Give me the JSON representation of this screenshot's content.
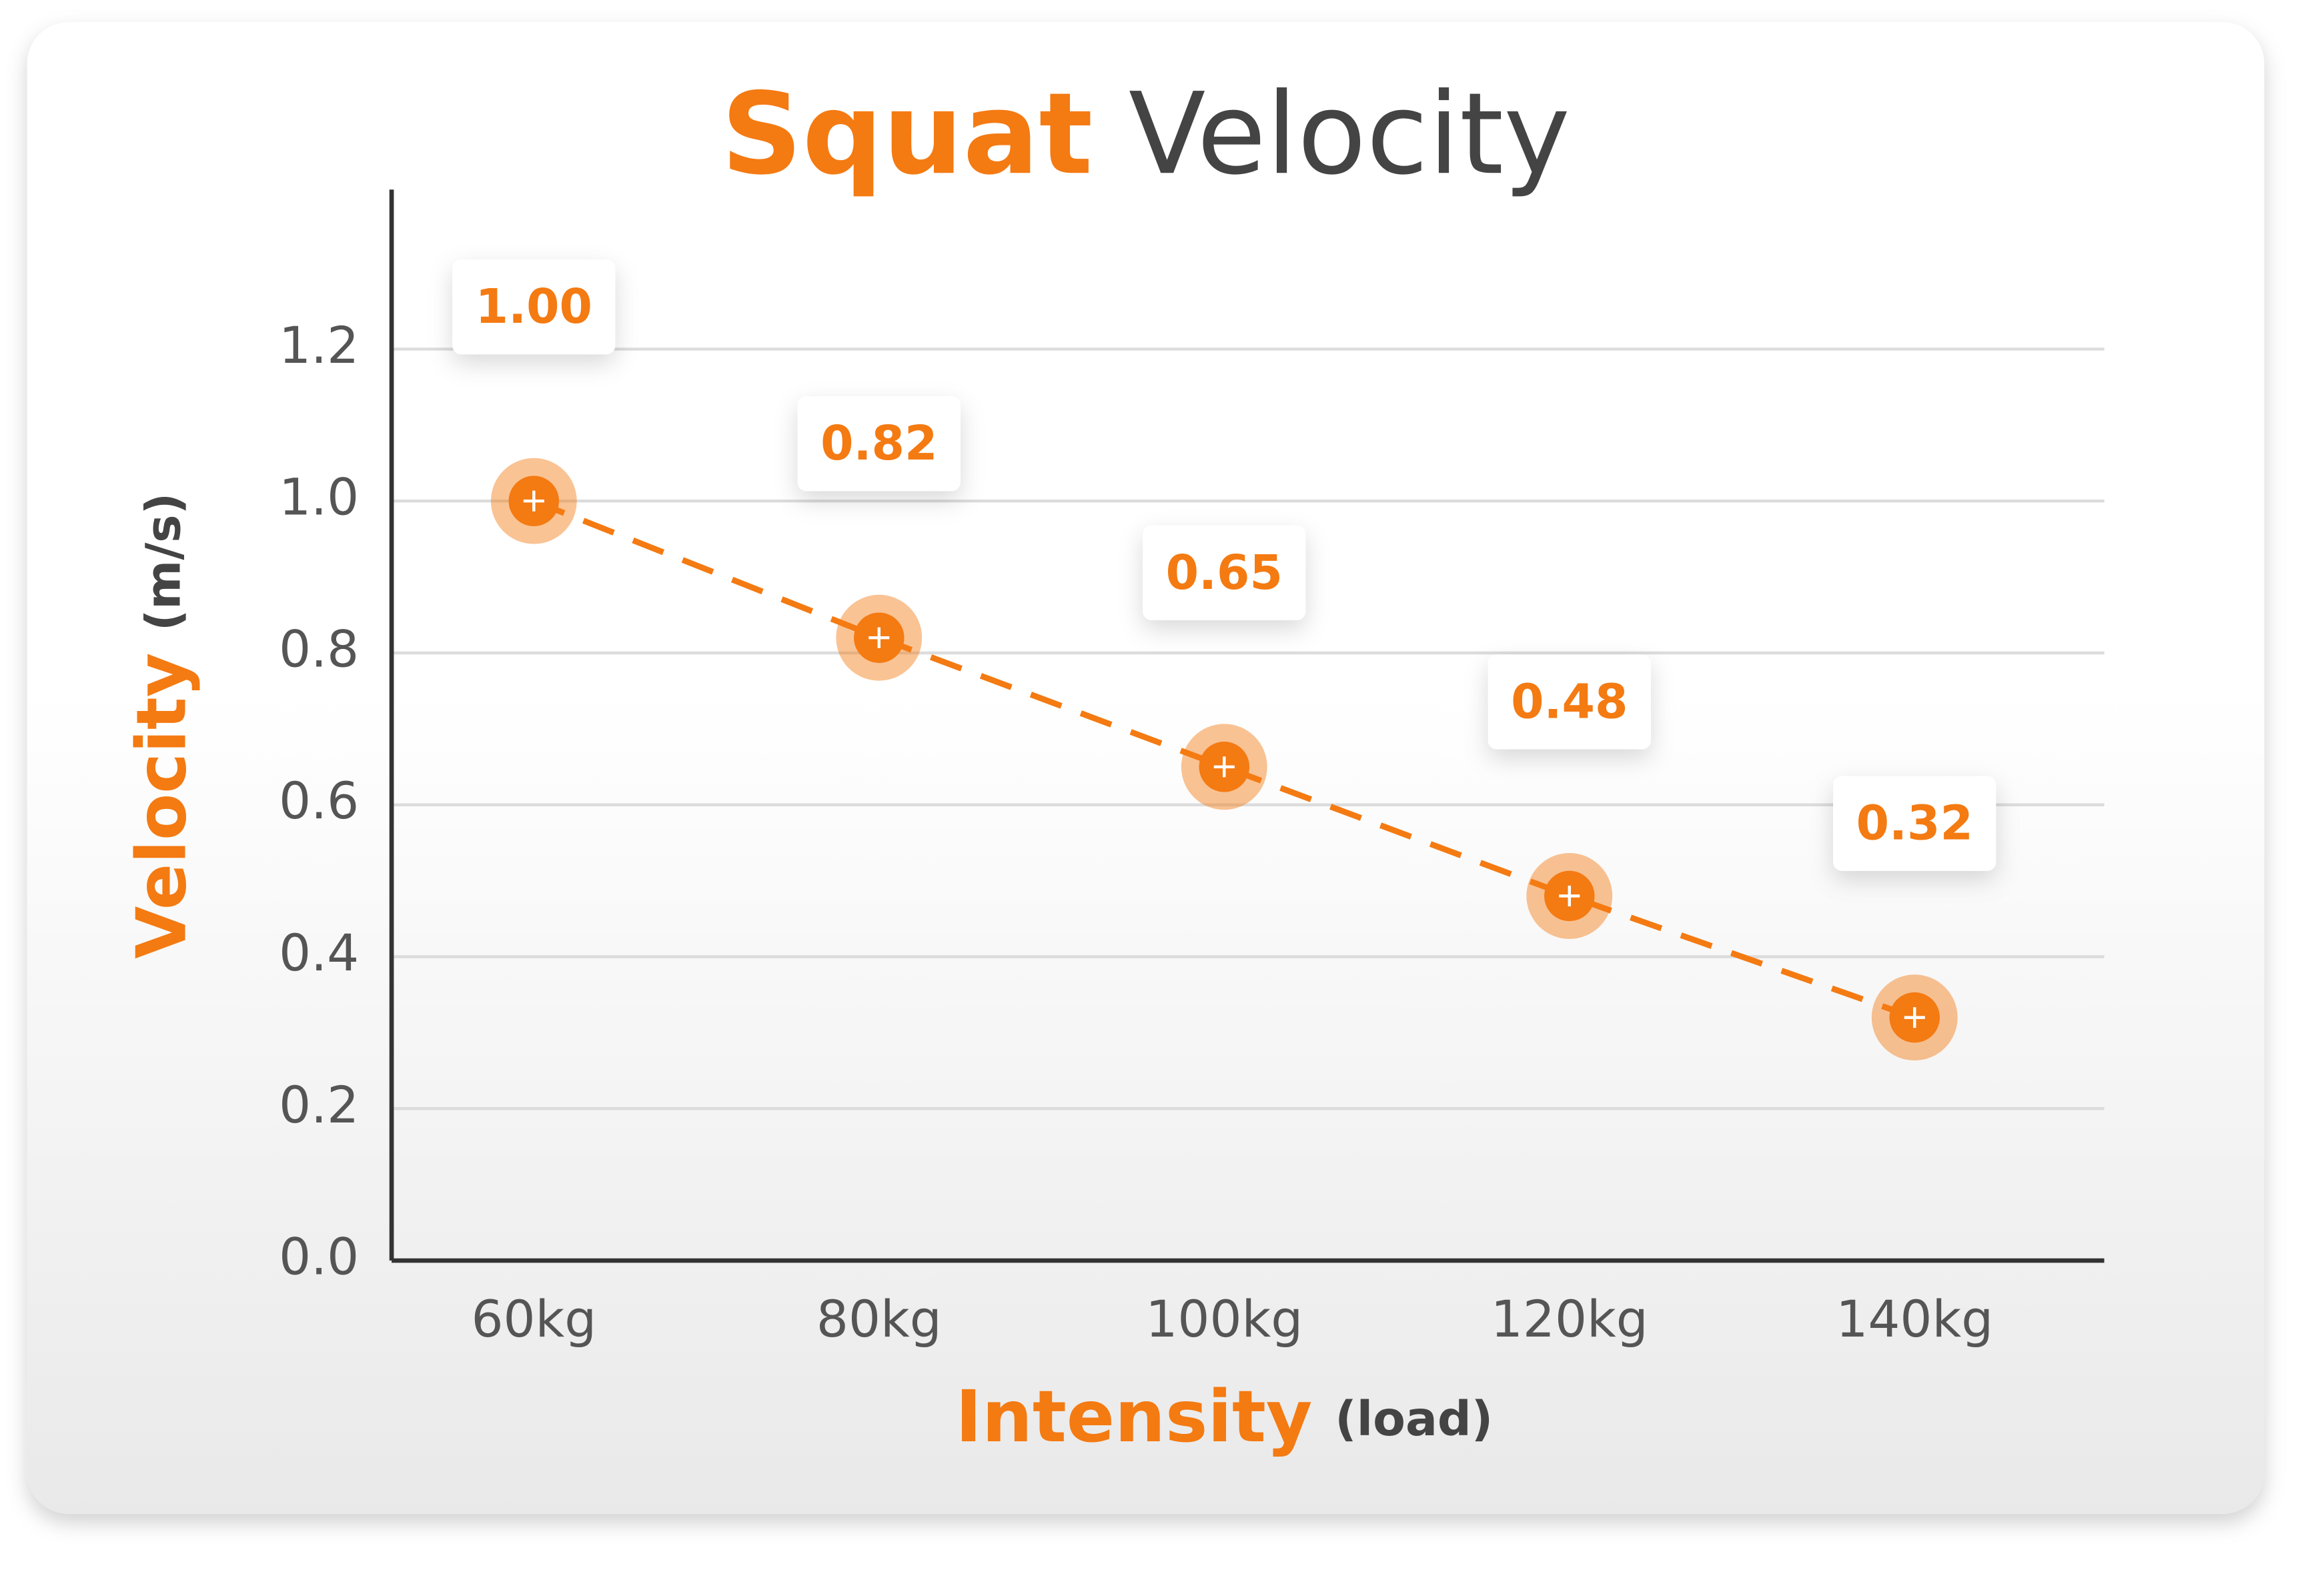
{
  "chart_data": {
    "type": "line",
    "title_parts": [
      "Squat",
      "Velocity"
    ],
    "y_label": {
      "text": "Velocity",
      "unit": "(m/s)"
    },
    "x_label": {
      "text": "Intensity",
      "unit": "(load)"
    },
    "categories": [
      "60kg",
      "80kg",
      "100kg",
      "120kg",
      "140kg"
    ],
    "values": [
      1.0,
      0.82,
      0.65,
      0.48,
      0.32
    ],
    "value_labels": [
      "1.00",
      "0.82",
      "0.65",
      "0.48",
      "0.32"
    ],
    "color": "#f47a12",
    "ylim": [
      0,
      1.41
    ],
    "yticks": [
      {
        "value": 0,
        "label": "0.0"
      },
      0.2,
      0.4,
      0.6,
      0.8,
      {
        "value": 1,
        "label": "1.0"
      },
      1.2
    ],
    "grid": true
  }
}
